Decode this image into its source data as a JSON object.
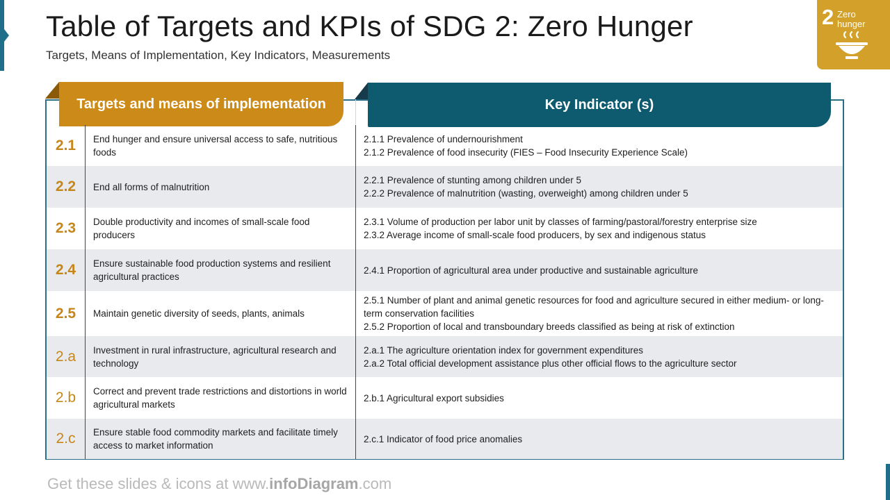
{
  "header": {
    "title": "Table of Targets and KPIs of SDG 2: Zero Hunger",
    "subtitle": "Targets, Means of Implementation, Key Indicators, Measurements"
  },
  "badge": {
    "number": "2",
    "line1": "Zero",
    "line2": "hunger",
    "icon": "bowl-icon",
    "color": "#d3a029"
  },
  "table": {
    "left_header": "Targets and means of implementation",
    "right_header": "Key Indicator (s)",
    "left_color": "#cc8a18",
    "right_color": "#0e5a6f",
    "rows": [
      {
        "num": "2.1",
        "target": "End hunger and ensure universal access to safe, nutritious foods",
        "kpis": [
          "2.1.1 Prevalence of undernourishment",
          "2.1.2 Prevalence of food insecurity (FIES – Food Insecurity Experience Scale)"
        ]
      },
      {
        "num": "2.2",
        "target": "End all forms of malnutrition",
        "kpis": [
          "2.2.1 Prevalence of stunting among children under 5",
          "2.2.2 Prevalence of malnutrition (wasting, overweight) among children under 5"
        ]
      },
      {
        "num": "2.3",
        "target": "Double productivity and incomes of small-scale food producers",
        "kpis": [
          "2.3.1 Volume of production per labor unit by classes of farming/pastoral/forestry enterprise size",
          "2.3.2 Average income of small-scale food producers, by sex and indigenous status"
        ]
      },
      {
        "num": "2.4",
        "target": "Ensure sustainable food production systems and resilient agricultural practices",
        "kpis": [
          "2.4.1 Proportion of agricultural area under productive and sustainable agriculture"
        ]
      },
      {
        "num": "2.5",
        "target": "Maintain genetic diversity of seeds, plants, animals",
        "kpis": [
          "2.5.1 Number of plant and animal genetic resources for food and agriculture secured in either medium- or long-term conservation facilities",
          "2.5.2 Proportion of local and transboundary breeds classified as being at risk of extinction"
        ]
      },
      {
        "num": "2.a",
        "target": "Investment in rural infrastructure, agricultural research and technology",
        "kpis": [
          "2.a.1 The agriculture orientation index for government expenditures",
          "2.a.2 Total official development assistance plus other official flows to the agriculture sector"
        ]
      },
      {
        "num": "2.b",
        "target": "Correct and prevent trade restrictions and distortions in world agricultural markets",
        "kpis": [
          "2.b.1 Agricultural export subsidies"
        ]
      },
      {
        "num": "2.c",
        "target": "Ensure stable food commodity markets and facilitate timely access to market information",
        "kpis": [
          "2.c.1 Indicator of food price anomalies"
        ]
      }
    ]
  },
  "footer": {
    "prefix": "Get these slides & icons at www.",
    "brand": "infoDiagram",
    "suffix": ".com"
  }
}
